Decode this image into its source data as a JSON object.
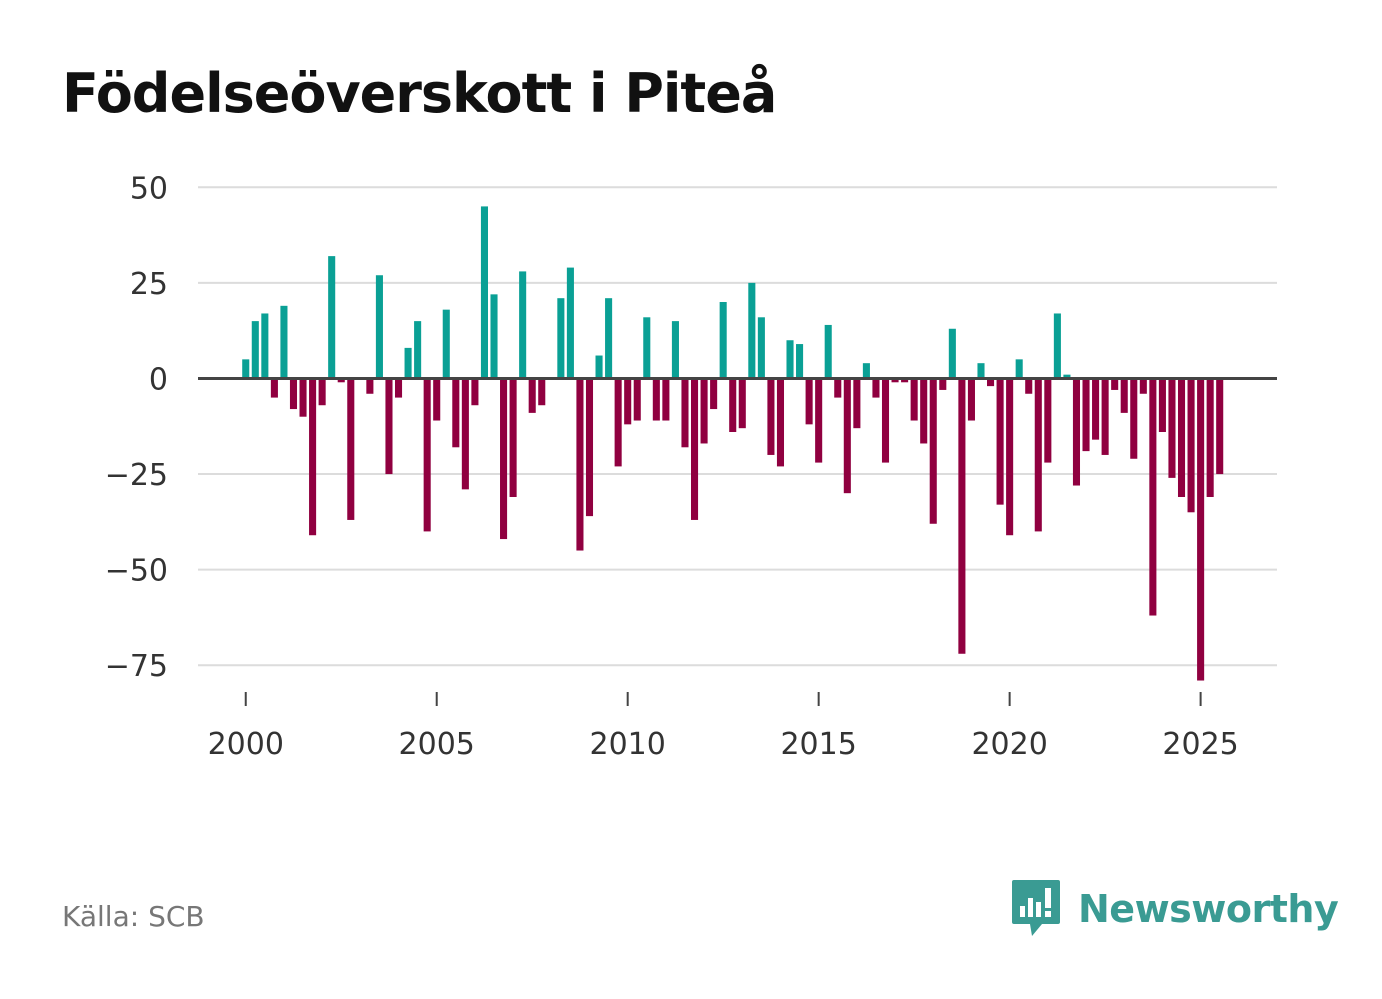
{
  "header": {
    "title": "Födelseöverskott i Piteå"
  },
  "footer": {
    "source": "Källa: SCB",
    "brand": "Newsworthy"
  },
  "colors": {
    "positive": "#0aa095",
    "negative": "#900040",
    "grid": "#dcdcdc",
    "zero_line": "#444444",
    "brand": "#3a9b93"
  },
  "chart_data": {
    "type": "bar",
    "title": "Födelseöverskott i Piteå",
    "xlabel": "",
    "ylabel": "",
    "ylim": [
      -82,
      54
    ],
    "xlim": [
      1998.75,
      2027.0
    ],
    "yticks": [
      50,
      25,
      0,
      -25,
      -50,
      -75
    ],
    "ytick_labels": [
      "50",
      "25",
      "0",
      "−25",
      "−50",
      "−75"
    ],
    "xticks": [
      2000,
      2005,
      2010,
      2015,
      2020,
      2025
    ],
    "xtick_labels": [
      "2000",
      "2005",
      "2010",
      "2015",
      "2020",
      "2025"
    ],
    "grid": true,
    "frequency": "quarterly",
    "first_period": 2000.0,
    "period_length": 0.25,
    "values": [
      5,
      15,
      17,
      -5,
      19,
      -8,
      -10,
      -41,
      -7,
      32,
      -1,
      -37,
      0,
      -4,
      27,
      -25,
      -5,
      8,
      15,
      -40,
      -11,
      18,
      -18,
      -29,
      -7,
      45,
      22,
      -42,
      -31,
      28,
      -9,
      -7,
      0,
      21,
      29,
      -45,
      -36,
      6,
      21,
      -23,
      -12,
      -11,
      16,
      -11,
      -11,
      15,
      -18,
      -37,
      -17,
      -8,
      20,
      -14,
      -13,
      25,
      16,
      -20,
      -23,
      10,
      9,
      -12,
      -22,
      14,
      -5,
      -30,
      -13,
      4,
      -5,
      -22,
      -1,
      -1,
      -11,
      -17,
      -38,
      -3,
      13,
      -72,
      -11,
      4,
      -2,
      -33,
      -41,
      5,
      -4,
      -40,
      -22,
      17,
      1,
      -28,
      -19,
      -16,
      -20,
      -3,
      -9,
      -21,
      -4,
      -62,
      -14,
      -26,
      -31,
      -35,
      -79,
      -31,
      -25
    ]
  }
}
